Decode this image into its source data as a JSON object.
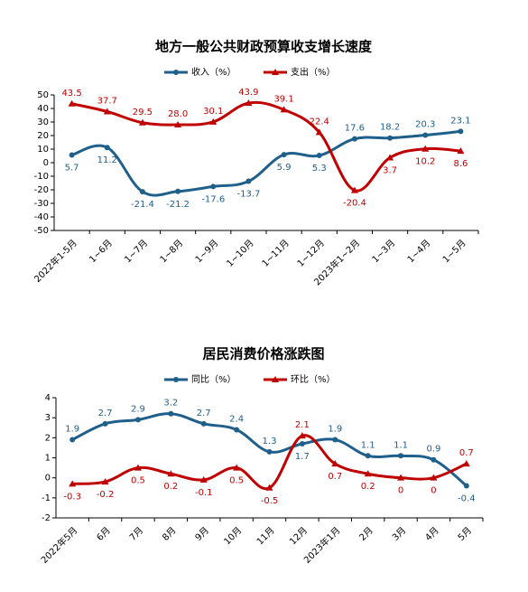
{
  "chart_data": [
    {
      "type": "line",
      "title": "地方一般公共财政预算收支增长速度",
      "categories": [
        "2022年1-5月",
        "1~6月",
        "1~7月",
        "1~8月",
        "1~9月",
        "1~10月",
        "1~11月",
        "1~12月",
        "2023年1~2月",
        "1~3月",
        "1~4月",
        "1~5月"
      ],
      "series": [
        {
          "name": "收入（%）",
          "color": "#1f5f8b",
          "marker": "circle",
          "values": [
            5.7,
            11.2,
            -21.4,
            -21.2,
            -17.6,
            -13.7,
            5.9,
            5.3,
            17.6,
            18.2,
            20.3,
            23.1
          ]
        },
        {
          "name": "支出（%）",
          "color": "#c00000",
          "marker": "triangle",
          "values": [
            43.5,
            37.7,
            29.5,
            28.0,
            30.1,
            43.9,
            39.1,
            22.4,
            -20.4,
            3.7,
            10.2,
            8.6
          ],
          "value_labels": [
            "43.5",
            "37.7",
            "29.5",
            "28.0",
            "30.1",
            "43.9",
            "39.1",
            "22.4",
            "-20.4",
            "3.7",
            "10.2",
            "8.6"
          ]
        }
      ],
      "ylim": [
        -50,
        50
      ],
      "yticks": [
        -50,
        -40,
        -30,
        -20,
        -10,
        0,
        10,
        20,
        30,
        40,
        50
      ],
      "grid": false
    },
    {
      "type": "line",
      "title": "居民消费价格涨跌图",
      "categories": [
        "2022年5月",
        "6月",
        "7月",
        "8月",
        "9月",
        "10月",
        "11月",
        "12月",
        "2023年1月",
        "2月",
        "3月",
        "4月",
        "5月"
      ],
      "series": [
        {
          "name": "同比（%）",
          "color": "#1f5f8b",
          "marker": "circle",
          "values": [
            1.9,
            2.7,
            2.9,
            3.2,
            2.7,
            2.4,
            1.3,
            1.7,
            1.9,
            1.1,
            1.1,
            0.9,
            -0.4
          ]
        },
        {
          "name": "环比（%）",
          "color": "#c00000",
          "marker": "triangle",
          "values": [
            -0.3,
            -0.2,
            0.5,
            0.2,
            -0.1,
            0.5,
            -0.5,
            2.1,
            0.7,
            0.2,
            0,
            0,
            0.7
          ]
        }
      ],
      "ylim": [
        -2,
        4
      ],
      "yticks": [
        -2,
        -1,
        0,
        1,
        2,
        3,
        4
      ],
      "grid": false
    }
  ]
}
